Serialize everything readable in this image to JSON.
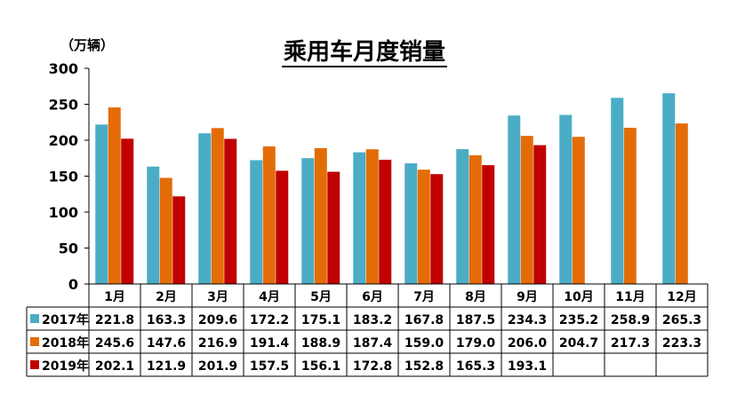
{
  "chart_data": {
    "type": "bar",
    "title": "乘用车月度销量",
    "unit_label": "（万辆）",
    "categories": [
      "1月",
      "2月",
      "3月",
      "4月",
      "5月",
      "6月",
      "7月",
      "8月",
      "9月",
      "10月",
      "11月",
      "12月"
    ],
    "series": [
      {
        "name": "2017年",
        "color": "#4bacc6",
        "values": [
          221.8,
          163.3,
          209.6,
          172.2,
          175.1,
          183.2,
          167.8,
          187.5,
          234.3,
          235.2,
          258.9,
          265.3
        ]
      },
      {
        "name": "2018年",
        "color": "#e36c09",
        "values": [
          245.6,
          147.6,
          216.9,
          191.4,
          188.9,
          187.4,
          159.0,
          179.0,
          206.0,
          204.7,
          217.3,
          223.3
        ]
      },
      {
        "name": "2019年",
        "color": "#c00000",
        "values": [
          202.1,
          121.9,
          201.9,
          157.5,
          156.1,
          172.8,
          152.8,
          165.3,
          193.1,
          null,
          null,
          null
        ]
      }
    ],
    "ylim": [
      0,
      300
    ],
    "yticks": [
      0,
      50,
      100,
      150,
      200,
      250,
      300
    ],
    "grid": false,
    "legend_position": "data-table"
  }
}
